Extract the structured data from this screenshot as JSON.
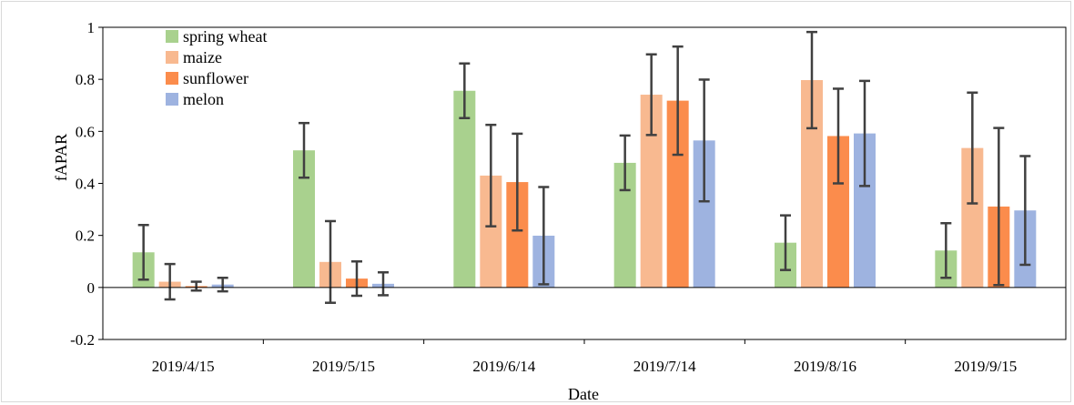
{
  "chart_data": {
    "type": "bar",
    "title": "",
    "xlabel": "Date",
    "ylabel": "fAPAR",
    "ylim": [
      -0.2,
      1
    ],
    "yticks": [
      -0.2,
      0,
      0.2,
      0.4,
      0.6,
      0.8,
      1
    ],
    "ytick_labels": [
      "-0.2",
      "0",
      "0.2",
      "0.4",
      "0.6",
      "0.8",
      "1"
    ],
    "grid": false,
    "legend_position": "top-left",
    "categories": [
      "2019/4/15",
      "2019/5/15",
      "2019/6/14",
      "2019/7/14",
      "2019/8/16",
      "2019/9/15"
    ],
    "series": [
      {
        "name": "spring wheat",
        "color": "#a9d18e",
        "values": [
          0.135,
          0.527,
          0.756,
          0.479,
          0.172,
          0.142
        ],
        "errors": [
          0.105,
          0.105,
          0.105,
          0.105,
          0.105,
          0.105
        ]
      },
      {
        "name": "maize",
        "color": "#f8b990",
        "values": [
          0.022,
          0.098,
          0.43,
          0.741,
          0.797,
          0.536
        ],
        "errors": [
          0.068,
          0.157,
          0.195,
          0.155,
          0.185,
          0.213
        ]
      },
      {
        "name": "sunflower",
        "color": "#fb8c4c",
        "values": [
          0.005,
          0.034,
          0.405,
          0.718,
          0.582,
          0.311
        ],
        "errors": [
          0.017,
          0.066,
          0.186,
          0.208,
          0.182,
          0.302
        ]
      },
      {
        "name": "melon",
        "color": "#9eb3e0",
        "values": [
          0.011,
          0.014,
          0.199,
          0.565,
          0.592,
          0.296
        ],
        "errors": [
          0.026,
          0.044,
          0.187,
          0.234,
          0.202,
          0.209
        ]
      }
    ]
  }
}
